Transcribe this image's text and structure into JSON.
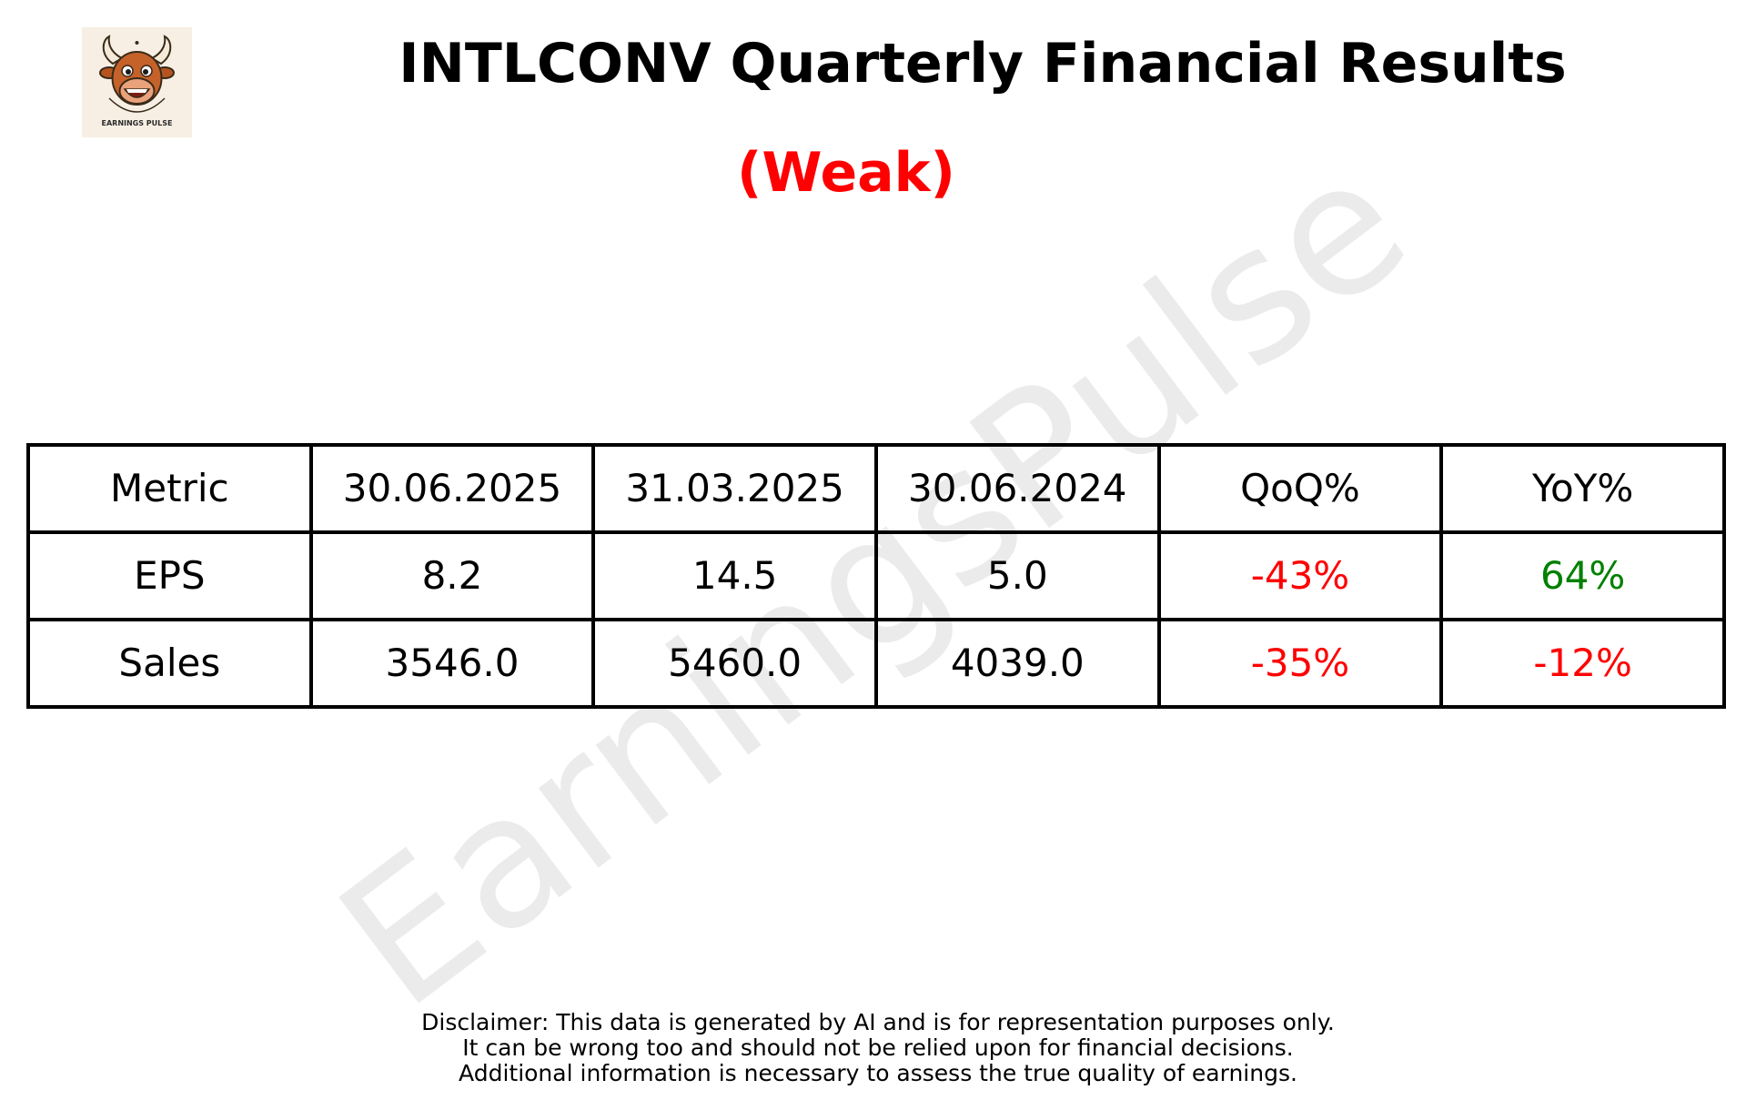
{
  "logo": {
    "icon": "bull-mascot-icon",
    "caption": "EARNINGS PULSE",
    "background": "#f7efe3"
  },
  "header": {
    "title": "INTLCONV Quarterly Financial Results",
    "rating": "(Weak)",
    "rating_color": "#ff0000"
  },
  "watermark": "EarningsPulse",
  "table": {
    "columns": [
      "Metric",
      "30.06.2025",
      "31.03.2025",
      "30.06.2024",
      "QoQ%",
      "YoY%"
    ],
    "rows": [
      {
        "metric": "EPS",
        "q_current": "8.2",
        "q_previous": "14.5",
        "q_year_ago": "5.0",
        "qoq": "-43%",
        "yoy": "64%"
      },
      {
        "metric": "Sales",
        "q_current": "3546.0",
        "q_previous": "5460.0",
        "q_year_ago": "4039.0",
        "qoq": "-35%",
        "yoy": "-12%"
      }
    ],
    "colors": {
      "negative": "#ff0000",
      "positive": "#008000"
    }
  },
  "disclaimer": {
    "line1": "Disclaimer: This data is generated by AI and is for representation purposes only.",
    "line2": "It can be wrong too and should not be relied upon for financial decisions.",
    "line3": "Additional information is necessary to assess the true quality of earnings."
  }
}
